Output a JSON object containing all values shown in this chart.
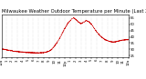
{
  "title": "Milwaukee Weather Outdoor Temperature per Minute (Last 24 Hours)",
  "background_color": "#ffffff",
  "line_color": "#cc0000",
  "grid_color": "#bbbbbb",
  "ylim": [
    24,
    58
  ],
  "yticks": [
    25,
    30,
    35,
    40,
    45,
    50,
    55
  ],
  "xlim": [
    0,
    1440
  ],
  "num_points": 1440,
  "title_fontsize": 3.8,
  "tick_fontsize": 2.8,
  "figsize": [
    1.6,
    0.87
  ],
  "dpi": 100,
  "curve": [
    [
      0,
      30.5
    ],
    [
      60,
      29.5
    ],
    [
      120,
      28.8
    ],
    [
      180,
      28.2
    ],
    [
      240,
      27.8
    ],
    [
      300,
      27.5
    ],
    [
      360,
      27.3
    ],
    [
      420,
      27.2
    ],
    [
      480,
      27.4
    ],
    [
      540,
      28.5
    ],
    [
      570,
      30.0
    ],
    [
      600,
      32.5
    ],
    [
      630,
      35.5
    ],
    [
      660,
      39.0
    ],
    [
      690,
      43.0
    ],
    [
      720,
      47.0
    ],
    [
      750,
      50.5
    ],
    [
      780,
      53.0
    ],
    [
      800,
      54.5
    ],
    [
      810,
      55.2
    ],
    [
      820,
      55.0
    ],
    [
      840,
      54.0
    ],
    [
      870,
      52.0
    ],
    [
      900,
      50.5
    ],
    [
      930,
      51.5
    ],
    [
      960,
      53.0
    ],
    [
      990,
      52.0
    ],
    [
      1020,
      50.0
    ],
    [
      1050,
      47.0
    ],
    [
      1080,
      44.0
    ],
    [
      1110,
      41.5
    ],
    [
      1140,
      39.5
    ],
    [
      1170,
      38.0
    ],
    [
      1200,
      37.0
    ],
    [
      1230,
      36.2
    ],
    [
      1260,
      35.8
    ],
    [
      1290,
      36.0
    ],
    [
      1320,
      36.5
    ],
    [
      1350,
      37.0
    ],
    [
      1380,
      37.5
    ],
    [
      1440,
      37.8
    ]
  ],
  "xtick_positions": [
    0,
    60,
    120,
    180,
    240,
    300,
    360,
    420,
    480,
    540,
    600,
    660,
    720,
    780,
    840,
    900,
    960,
    1020,
    1080,
    1140,
    1200,
    1260,
    1320,
    1380,
    1440
  ],
  "xtick_labels": [
    "12a",
    "1",
    "2",
    "3",
    "4",
    "5",
    "6",
    "7",
    "8",
    "9",
    "10",
    "11",
    "12p",
    "1",
    "2",
    "3",
    "4",
    "5",
    "6",
    "7",
    "8",
    "9",
    "10",
    "11",
    "12a"
  ]
}
